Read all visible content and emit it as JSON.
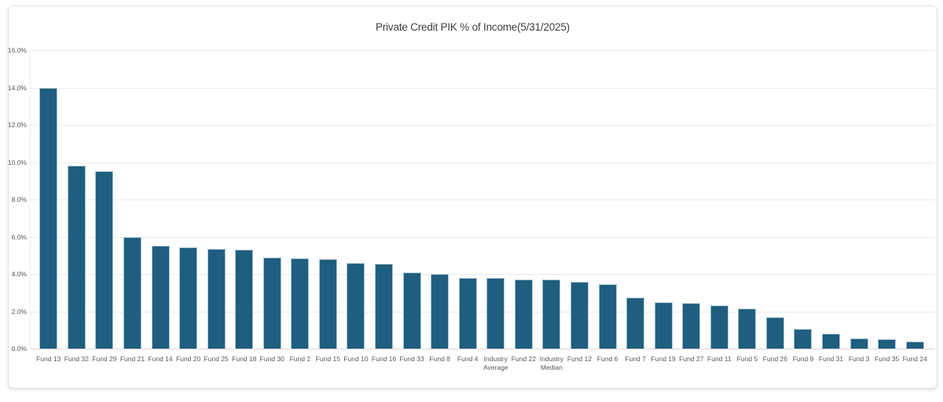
{
  "chart_data": {
    "type": "bar",
    "title": "Private Credit PIK % of Income(5/31/2025)",
    "categories": [
      "Fund 13",
      "Fund 32",
      "Fund 29",
      "Fund 21",
      "Fund 14",
      "Fund 20",
      "Fund 25",
      "Fund 18",
      "Fund 30",
      "Fund 2",
      "Fund 15",
      "Fund 10",
      "Fund 16",
      "Fund 33",
      "Fund 8",
      "Fund 4",
      "Industry Average",
      "Fund 22",
      "Industry Median",
      "Fund 12",
      "Fund 6",
      "Fund 7",
      "Fund 19",
      "Fund 27",
      "Fund 11",
      "Fund 5",
      "Fund 26",
      "Fund 9",
      "Fund 31",
      "Fund 3",
      "Fund 35",
      "Fund 24"
    ],
    "values": [
      14.0,
      9.8,
      9.5,
      6.0,
      5.5,
      5.45,
      5.35,
      5.3,
      4.9,
      4.85,
      4.8,
      4.6,
      4.55,
      4.1,
      4.0,
      3.8,
      3.8,
      3.7,
      3.7,
      3.6,
      3.45,
      2.75,
      2.5,
      2.45,
      2.3,
      2.15,
      1.7,
      1.05,
      0.8,
      0.55,
      0.5,
      0.4
    ],
    "value_unit": "percent",
    "xlabel": "",
    "ylabel": "",
    "ylim": [
      0,
      16
    ],
    "ytick_labels": [
      "0.0%",
      "2.0%",
      "4.0%",
      "6.0%",
      "8.0%",
      "10.0%",
      "12.0%",
      "14.0%",
      "16.0%"
    ],
    "grid": "horizontal",
    "legend": "none",
    "bar_color": "#1f5e7e",
    "bar_border_color": "#a5c5d5",
    "gridline_color": "#e9e9e9",
    "tick_label_color": "#595959",
    "title_color": "#3f3f3f"
  }
}
